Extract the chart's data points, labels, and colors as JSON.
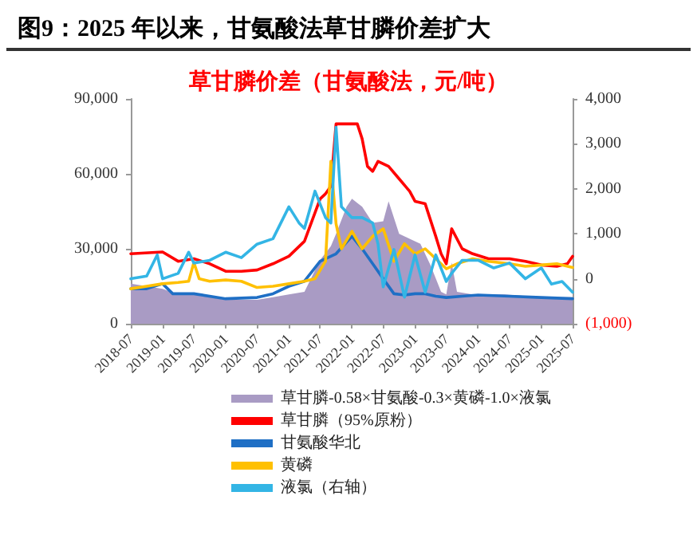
{
  "chart_data": {
    "type": "line",
    "title": "图9：2025 年以来，甘氨酸法草甘膦价差扩大",
    "subtitle": "草甘膦价差（甘氨酸法，元/吨）",
    "xlim": [
      "2018-07",
      "2025-07"
    ],
    "xticks": [
      "2018-07",
      "2019-01",
      "2019-07",
      "2020-01",
      "2020-07",
      "2021-01",
      "2021-07",
      "2022-01",
      "2022-07",
      "2023-01",
      "2023-07",
      "2024-01",
      "2024-07",
      "2025-01",
      "2025-07"
    ],
    "ylim": [
      0,
      90000
    ],
    "yticks": [
      {
        "value": 0,
        "label": "0"
      },
      {
        "value": 30000,
        "label": "30,000"
      },
      {
        "value": 60000,
        "label": "60,000"
      },
      {
        "value": 90000,
        "label": "90,000"
      }
    ],
    "y2lim": [
      -1000,
      4000
    ],
    "y2ticks": [
      {
        "value": -1000,
        "label": "(1,000)"
      },
      {
        "value": 0,
        "label": "0"
      },
      {
        "value": 1000,
        "label": "1,000"
      },
      {
        "value": 2000,
        "label": "2,000"
      },
      {
        "value": 3000,
        "label": "3,000"
      },
      {
        "value": 4000,
        "label": "4,000"
      }
    ],
    "grid": false,
    "legend": "bottom",
    "marker": "none",
    "line_style": "solid",
    "series": [
      {
        "name": "草甘膦-0.58×甘氨酸-0.3×黄磷-1.0×液氯",
        "type": "area",
        "color": "#a99bc4",
        "x": [
          "2018-07",
          "2018-10",
          "2019-01",
          "2019-04",
          "2019-07",
          "2020-01",
          "2020-07",
          "2020-10",
          "2021-01",
          "2021-04",
          "2021-07",
          "2021-09",
          "2021-10",
          "2021-12",
          "2022-01",
          "2022-03",
          "2022-05",
          "2022-07",
          "2022-08",
          "2022-10",
          "2022-12",
          "2023-02",
          "2023-04",
          "2023-06",
          "2023-07",
          "2023-08",
          "2023-09",
          "2023-12",
          "2024-06",
          "2025-01",
          "2025-07"
        ],
        "values": [
          16000,
          15000,
          14000,
          11700,
          11700,
          9600,
          9600,
          10600,
          11700,
          12800,
          25500,
          31000,
          36000,
          46800,
          50000,
          46800,
          40400,
          41000,
          49000,
          36000,
          34000,
          32000,
          23400,
          12800,
          11700,
          24500,
          12800,
          11700,
          11700,
          10600,
          10600
        ]
      },
      {
        "name": "草甘膦（95%原粉）",
        "color": "#ff0000",
        "x": [
          "2018-07",
          "2019-01",
          "2019-04",
          "2019-07",
          "2019-10",
          "2020-01",
          "2020-04",
          "2020-07",
          "2020-10",
          "2021-01",
          "2021-04",
          "2021-07",
          "2021-08",
          "2021-09",
          "2021-10",
          "2022-02",
          "2022-03",
          "2022-04",
          "2022-05",
          "2022-06",
          "2022-08",
          "2022-10",
          "2022-12",
          "2023-01",
          "2023-03",
          "2023-05",
          "2023-06",
          "2023-07",
          "2023-08",
          "2023-10",
          "2023-12",
          "2024-03",
          "2024-07",
          "2024-10",
          "2025-01",
          "2025-04",
          "2025-06",
          "2025-07"
        ],
        "values": [
          28000,
          28700,
          25000,
          26000,
          24000,
          21000,
          21000,
          21500,
          24000,
          27000,
          33000,
          50000,
          52000,
          55000,
          80000,
          80000,
          74000,
          63000,
          61000,
          65000,
          63000,
          58000,
          53000,
          49000,
          48000,
          35000,
          28000,
          24000,
          38000,
          30000,
          28000,
          26000,
          26000,
          25000,
          23500,
          23000,
          24000,
          27000
        ]
      },
      {
        "name": "甘氨酸华北",
        "color": "#1f6fc5",
        "x": [
          "2018-07",
          "2018-10",
          "2019-01",
          "2019-03",
          "2019-07",
          "2020-01",
          "2020-07",
          "2020-10",
          "2021-01",
          "2021-04",
          "2021-07",
          "2021-10",
          "2022-01",
          "2022-03",
          "2022-05",
          "2022-07",
          "2022-09",
          "2022-11",
          "2023-01",
          "2023-03",
          "2023-05",
          "2023-07",
          "2023-10",
          "2024-01",
          "2024-07",
          "2025-01",
          "2025-07"
        ],
        "values": [
          14000,
          14000,
          16000,
          12000,
          12000,
          10000,
          10500,
          12000,
          15000,
          17000,
          25000,
          28000,
          35000,
          30000,
          24000,
          18000,
          12000,
          11500,
          12000,
          12000,
          11000,
          10500,
          11000,
          11500,
          11000,
          10500,
          10000
        ]
      },
      {
        "name": "黄磷",
        "color": "#ffc000",
        "x": [
          "2018-07",
          "2018-10",
          "2019-01",
          "2019-04",
          "2019-06",
          "2019-07",
          "2019-08",
          "2019-10",
          "2020-01",
          "2020-04",
          "2020-07",
          "2020-10",
          "2021-01",
          "2021-04",
          "2021-06",
          "2021-08",
          "2021-09",
          "2021-10",
          "2021-11",
          "2022-01",
          "2022-03",
          "2022-05",
          "2022-07",
          "2022-09",
          "2022-11",
          "2023-01",
          "2023-03",
          "2023-05",
          "2023-07",
          "2023-09",
          "2023-12",
          "2024-03",
          "2024-07",
          "2024-10",
          "2025-01",
          "2025-04",
          "2025-07"
        ],
        "values": [
          14000,
          15000,
          16000,
          16500,
          17000,
          24500,
          18000,
          17000,
          17500,
          17000,
          14500,
          15000,
          16000,
          17000,
          18000,
          25000,
          65000,
          40000,
          30000,
          37000,
          30000,
          35000,
          38000,
          25000,
          32000,
          28000,
          30000,
          26000,
          22000,
          24000,
          26000,
          25000,
          24000,
          23000,
          23500,
          24000,
          22500
        ]
      },
      {
        "name": "液氯（右轴）",
        "color": "#33b5e5",
        "axis": "y2",
        "x": [
          "2018-07",
          "2018-10",
          "2018-12",
          "2019-01",
          "2019-04",
          "2019-06",
          "2019-07",
          "2019-10",
          "2020-01",
          "2020-04",
          "2020-07",
          "2020-10",
          "2021-01",
          "2021-03",
          "2021-04",
          "2021-06",
          "2021-08",
          "2021-09",
          "2021-10",
          "2021-11",
          "2022-01",
          "2022-03",
          "2022-05",
          "2022-06",
          "2022-07",
          "2022-09",
          "2022-11",
          "2023-01",
          "2023-03",
          "2023-05",
          "2023-07",
          "2023-08",
          "2023-10",
          "2024-01",
          "2024-04",
          "2024-07",
          "2024-10",
          "2025-01",
          "2025-03",
          "2025-05",
          "2025-07"
        ],
        "values": [
          0,
          60,
          530,
          0,
          120,
          590,
          350,
          410,
          590,
          470,
          770,
          890,
          1600,
          1240,
          1120,
          1950,
          1360,
          1240,
          3370,
          1600,
          1360,
          1360,
          1240,
          770,
          -180,
          650,
          -410,
          530,
          -300,
          530,
          -60,
          120,
          410,
          410,
          240,
          350,
          0,
          240,
          -120,
          -60,
          -300
        ]
      }
    ]
  }
}
